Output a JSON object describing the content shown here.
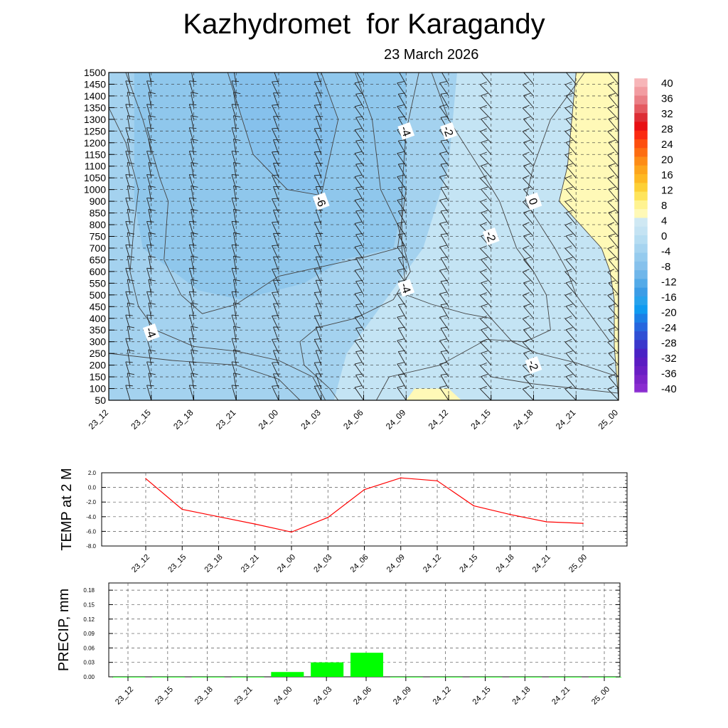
{
  "header": {
    "title": "Kazhydromet  for Karagandy",
    "date": "23 March 2026"
  },
  "chart_data": [
    {
      "type": "heatmap",
      "name": "cross-section",
      "title": "Kazhydromet  for Karagandy",
      "subtitle": "23 March 2026",
      "xlabel": "",
      "ylabel": "",
      "x_ticks": [
        "23_12",
        "23_15",
        "23_18",
        "23_21",
        "24_00",
        "24_03",
        "24_06",
        "24_09",
        "24_12",
        "24_15",
        "24_18",
        "24_21",
        "25_00"
      ],
      "y_ticks": [
        1500,
        1450,
        1400,
        1350,
        1300,
        1250,
        1200,
        1150,
        1100,
        1050,
        1000,
        900,
        850,
        800,
        750,
        700,
        650,
        600,
        550,
        500,
        450,
        400,
        350,
        300,
        250,
        200,
        150,
        100,
        50
      ],
      "colorbar": {
        "labels": [
          "40",
          "36",
          "32",
          "28",
          "24",
          "20",
          "16",
          "12",
          "8",
          "4",
          "0",
          "-4",
          "-8",
          "-12",
          "-16",
          "-20",
          "-24",
          "-28",
          "-32",
          "-36",
          "-40"
        ],
        "colors": [
          "#f7b5b8",
          "#f29ca1",
          "#ea7f86",
          "#e45a61",
          "#dd2d35",
          "#e80f13",
          "#fb2a10",
          "#fd4e0e",
          "#fd6d11",
          "#fd8c16",
          "#fda51c",
          "#feb923",
          "#fdd036",
          "#fee45b",
          "#fff391",
          "#fff9b7",
          "#cfe8f3",
          "#c4e3f3",
          "#b6ddf2",
          "#a6d4f0",
          "#95cbee",
          "#86c1ec",
          "#6fb6ea",
          "#53aae8",
          "#3b9ce6",
          "#27a2ec",
          "#0f9af0",
          "#1b7fe6",
          "#2666de",
          "#2f4fd4",
          "#3a37cb",
          "#4a22c4",
          "#5b1cc2",
          "#6a1ec4",
          "#7b24c8",
          "#8a2cd0"
        ]
      },
      "contour_labels": [
        {
          "value": "-4",
          "at": [
            "23_15",
            340
          ]
        },
        {
          "value": "-6",
          "at": [
            "24_03",
            900
          ]
        },
        {
          "value": "-4",
          "at": [
            "24_09",
            1250
          ]
        },
        {
          "value": "-2",
          "at": [
            "24_12",
            1250
          ]
        },
        {
          "value": "0",
          "at": [
            "24_18",
            900
          ]
        },
        {
          "value": "-2",
          "at": [
            "24_15",
            750
          ]
        },
        {
          "value": "-4",
          "at": [
            "24_09",
            530
          ]
        },
        {
          "value": "-2",
          "at": [
            "24_18",
            200
          ]
        }
      ]
    },
    {
      "type": "line",
      "name": "temperature",
      "ylabel": "TEMP at 2 M",
      "x": [
        "23_12",
        "23_15",
        "23_18",
        "23_21",
        "24_00",
        "24_03",
        "24_06",
        "24_09",
        "24_12",
        "24_15",
        "24_18",
        "24_21",
        "25_00"
      ],
      "values": [
        1.2,
        -3.0,
        -4.0,
        -5.0,
        -6.1,
        -4.1,
        -0.3,
        1.3,
        0.9,
        -2.5,
        -3.7,
        -4.7,
        -4.9
      ],
      "ylim": [
        -8.0,
        2.0
      ],
      "y_ticks": [
        "2.0",
        "0.0",
        "-2.0",
        "-4.0",
        "-6.0",
        "-8.0"
      ],
      "color": "#ff0000"
    },
    {
      "type": "bar",
      "name": "precipitation",
      "ylabel": "PRECIP, mm",
      "categories": [
        "23_12",
        "23_15",
        "23_18",
        "23_21",
        "24_00",
        "24_03",
        "24_06",
        "24_09",
        "24_12",
        "24_15",
        "24_18",
        "24_21",
        "25_00"
      ],
      "values": [
        0,
        0,
        0,
        0,
        0.01,
        0.03,
        0.05,
        0,
        0,
        0,
        0,
        0,
        0
      ],
      "ylim": [
        0,
        0.195
      ],
      "y_ticks": [
        "0.18",
        "0.15",
        "0.12",
        "0.09",
        "0.06",
        "0.03",
        "0.00"
      ],
      "color": "#00ff00"
    }
  ]
}
